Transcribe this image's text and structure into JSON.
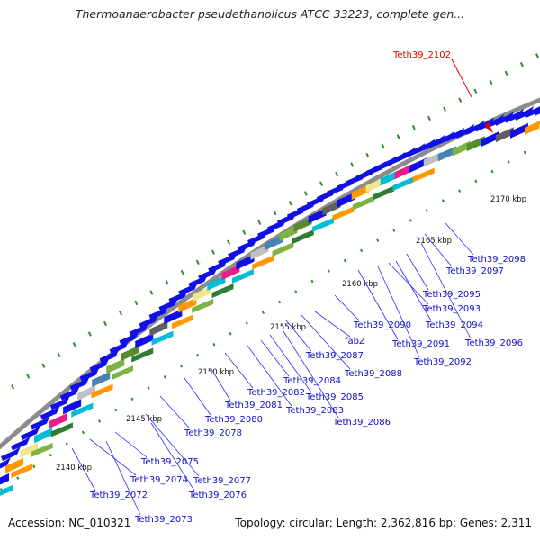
{
  "title": "Thermoanaerobacter pseudethanolicus ATCC 33223, complete gen...",
  "accession": "Accession: NC_010321",
  "topology": "Topology: circular; Length: 2,362,816 bp; Genes: 2,311",
  "highlighted_gene": "Teth39_2102",
  "kbp_ticks": [
    "2140 kbp",
    "2145 kbp",
    "2150 kbp",
    "2155 kbp",
    "2160 kbp",
    "2165 kbp",
    "2170 kbp"
  ],
  "gene_labels": [
    "Teth39_2072",
    "Teth39_2073",
    "Teth39_2074",
    "Teth39_2075",
    "Teth39_2076",
    "Teth39_2077",
    "Teth39_2078",
    "Teth39_2080",
    "Teth39_2081",
    "Teth39_2082",
    "Teth39_2083",
    "Teth39_2084",
    "Teth39_2085",
    "Teth39_2086",
    "Teth39_2087",
    "fabZ",
    "Teth39_2088",
    "Teth39_2090",
    "Teth39_2091",
    "Teth39_2092",
    "Teth39_2093",
    "Teth39_2094",
    "Teth39_2095",
    "Teth39_2096",
    "Teth39_2097",
    "Teth39_2098"
  ],
  "colors": {
    "gene_arrow": "#1010e6",
    "label_text": "#1010c8",
    "label_line": "#2a2aff",
    "highlight": "#e00000",
    "backbone": "#8c8c8c",
    "gc_marks": "#2e8b2e"
  }
}
